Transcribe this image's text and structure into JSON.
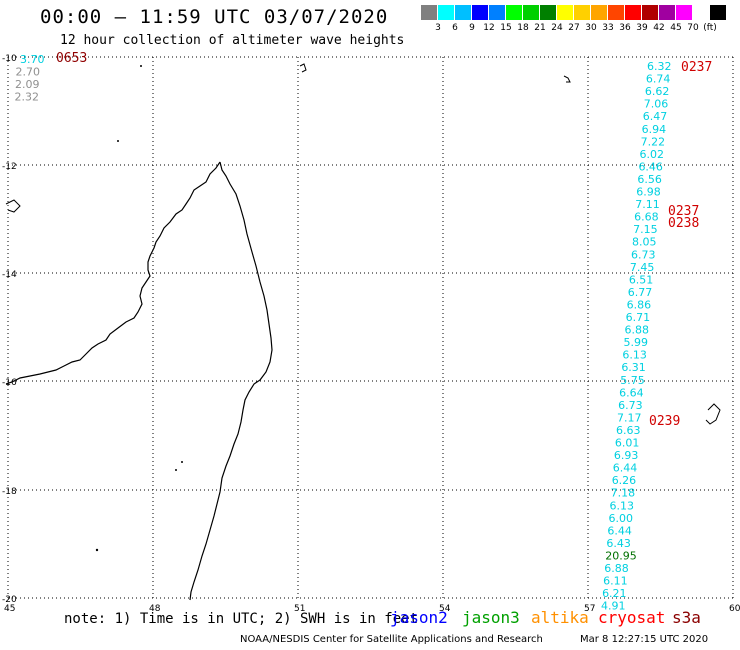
{
  "header": {
    "title": "00:00 – 11:59 UTC 03/07/2020",
    "subtitle": "12 hour collection of altimeter wave heights"
  },
  "legend": {
    "colors": [
      "#808080",
      "#00ffff",
      "#00bfff",
      "#0000ff",
      "#0080ff",
      "#00ff00",
      "#00d000",
      "#008000",
      "#ffff00",
      "#ffd000",
      "#ffa500",
      "#ff4500",
      "#ff0000",
      "#b00000",
      "#a000a0",
      "#ff00ff",
      "#ffffff",
      "#000000"
    ],
    "labels": [
      "3",
      "6",
      "9",
      "12",
      "15",
      "18",
      "21",
      "24",
      "27",
      "30",
      "33",
      "36",
      "39",
      "42",
      "45",
      "70",
      "(ft)"
    ]
  },
  "map": {
    "lon_range": [
      45,
      60
    ],
    "lat_range": [
      -20,
      -10
    ],
    "lon_ticks": [
      "45",
      "48",
      "51",
      "54",
      "57",
      "60"
    ],
    "lat_ticks": [
      "-10",
      "-12",
      "-14",
      "-16",
      "-18",
      "-20"
    ],
    "color_cyan": "#00d0e0",
    "color_gray": "#909090",
    "color_dkgreen": "#007000",
    "color_time": "#d00000",
    "color_time_dark": "#900000",
    "left_track": {
      "values": [
        "3.70",
        "2.70",
        "2.09",
        "2.32"
      ],
      "time": "0653"
    },
    "right_track": {
      "values": [
        "6.32",
        "6.74",
        "6.62",
        "7.06",
        "6.47",
        "6.94",
        "7.22",
        "6.02",
        "6.46",
        "6.56",
        "6.98",
        "7.11",
        "6.68",
        "7.15",
        "8.05",
        "6.73",
        "7.45",
        "6.51",
        "6.77",
        "6.86",
        "6.71",
        "6.88",
        "5.99",
        "6.13",
        "6.31",
        "5.75",
        "6.64",
        "6.73",
        "7.17",
        "6.63",
        "6.01",
        "6.93",
        "6.44",
        "6.26",
        "7.18",
        "6.13",
        "6.00",
        "6.44",
        "6.43",
        "20.95",
        "6.88",
        "6.11",
        "6.21",
        "4.91"
      ],
      "times": [
        "0237",
        "0237",
        "0238",
        "0239"
      ]
    }
  },
  "note": "note: 1) Time is in UTC; 2) SWH is in feet",
  "satellites": [
    {
      "name": "jason2",
      "color": "#0000ff"
    },
    {
      "name": "jason3",
      "color": "#00a000"
    },
    {
      "name": "altika",
      "color": "#ff9000"
    },
    {
      "name": "cryosat",
      "color": "#ff0000"
    },
    {
      "name": "s3a",
      "color": "#8b0000"
    }
  ],
  "footer": {
    "credit": "NOAA/NESDIS Center for Satellite Applications and Research",
    "timestamp": "Mar  8 12:27:15 UTC 2020"
  }
}
